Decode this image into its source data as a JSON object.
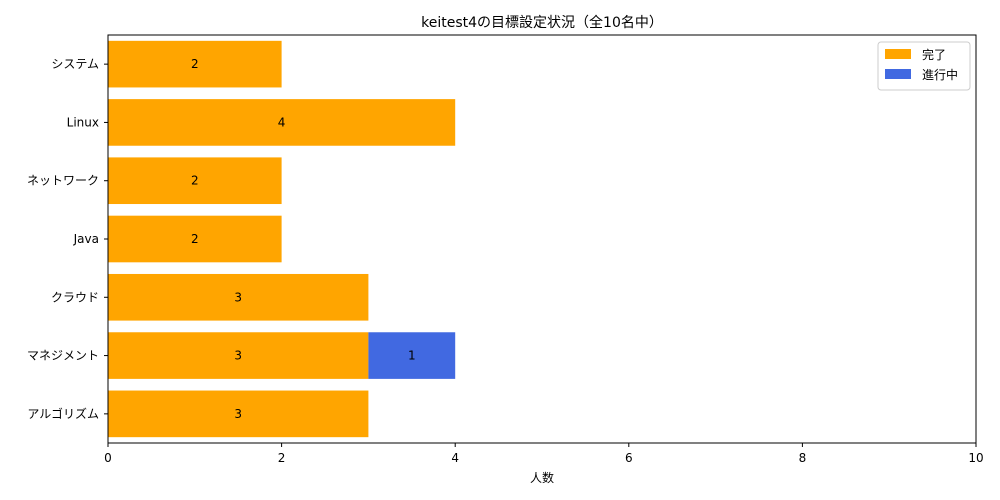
{
  "chart_data": {
    "type": "bar",
    "orientation": "horizontal",
    "stacked": true,
    "title": "keitest4の目標設定状況（全10名中）",
    "xlabel": "人数",
    "ylabel": "",
    "xlim": [
      0,
      10
    ],
    "xticks": [
      0,
      2,
      4,
      6,
      8,
      10
    ],
    "categories": [
      "システム",
      "Linux",
      "ネットワーク",
      "Java",
      "クラウド",
      "マネジメント",
      "アルゴリズム"
    ],
    "series": [
      {
        "name": "完了",
        "color": "#ffa500",
        "values": [
          2,
          4,
          2,
          2,
          3,
          3,
          3
        ]
      },
      {
        "name": "進行中",
        "color": "#4169e1",
        "values": [
          0,
          0,
          0,
          0,
          0,
          1,
          0
        ]
      }
    ],
    "legend_position": "top-right",
    "grid": false
  }
}
